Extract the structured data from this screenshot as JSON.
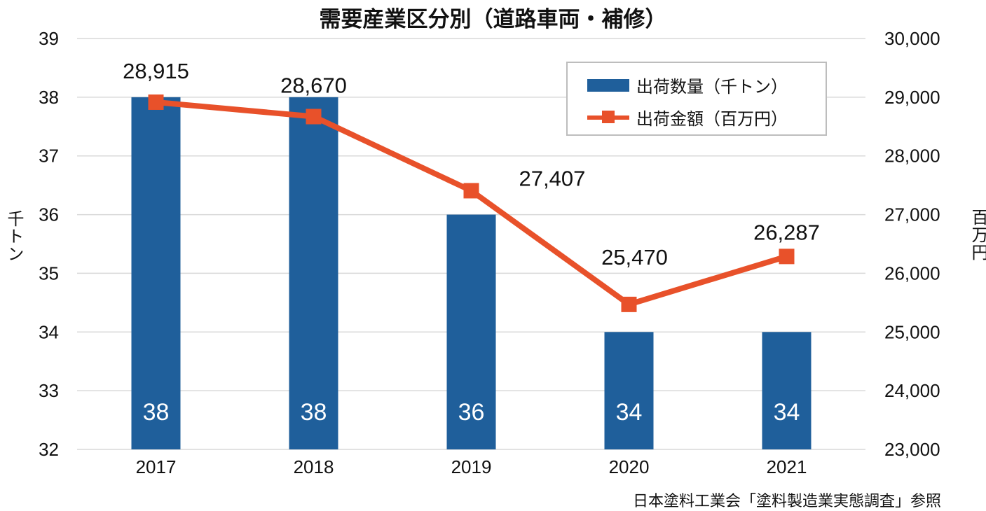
{
  "chart_data": {
    "type": "bar",
    "title": "需要産業区分別（道路車両・補修）",
    "categories": [
      "2017",
      "2018",
      "2019",
      "2020",
      "2021"
    ],
    "series": [
      {
        "name": "出荷数量（千トン）",
        "type": "bar",
        "axis": "left",
        "values": [
          38,
          38,
          36,
          34,
          34
        ],
        "labels": [
          "38",
          "38",
          "36",
          "34",
          "34"
        ],
        "color": "#1f5f9b"
      },
      {
        "name": "出荷金額（百万円）",
        "type": "line",
        "axis": "right",
        "values": [
          28915,
          28670,
          27407,
          25470,
          26287
        ],
        "labels": [
          "28,915",
          "28,670",
          "27,407",
          "25,470",
          "26,287"
        ],
        "color": "#e8512a"
      }
    ],
    "ylabel_left": "千トン",
    "ylabel_right": "百万円",
    "ylim_left": [
      32,
      39
    ],
    "ylim_right": [
      23000,
      30000
    ],
    "yticks_left": [
      "32",
      "33",
      "34",
      "35",
      "36",
      "37",
      "38",
      "39"
    ],
    "yticks_right": [
      "23,000",
      "24,000",
      "25,000",
      "26,000",
      "27,000",
      "28,000",
      "29,000",
      "30,000"
    ],
    "grid": true,
    "legend_position": "top-right",
    "source": "日本塗料工業会「塗料製造業実態調査」参照"
  }
}
